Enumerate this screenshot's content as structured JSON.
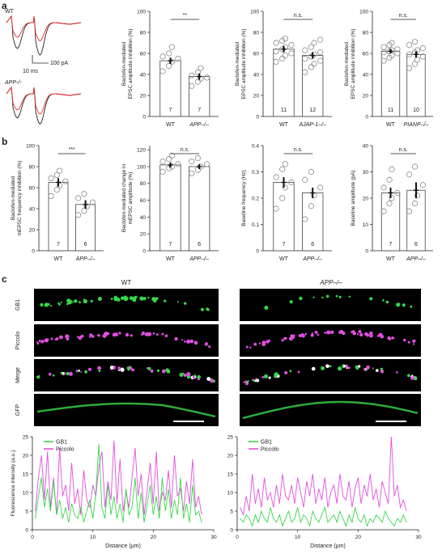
{
  "panels": {
    "a": "a",
    "b": "b",
    "c": "c"
  },
  "traces": {
    "wt_label": "WT",
    "app_label": "APP-/-",
    "scale_current": "100 pA",
    "scale_time": "10 ms",
    "colors": {
      "control": "#222222",
      "baclofen": "#e8282b"
    }
  },
  "colors": {
    "bar_fill": "#ffffff",
    "bar_stroke": "#444444",
    "point_stroke": "#8a8a8a",
    "gb1": "#39d64a",
    "piccolo": "#e24ee0",
    "image_bg": "#000000"
  },
  "chart_data": [
    {
      "id": "a1",
      "type": "bar",
      "ylabel": "Baclofen-mediated EPSC amplitude inhibition (%)",
      "categories": [
        "WT",
        "APP–/–"
      ],
      "italic": [
        false,
        true
      ],
      "values": [
        53,
        38
      ],
      "sem": [
        3,
        3
      ],
      "n": [
        "7",
        "7"
      ],
      "ylim": [
        0,
        100
      ],
      "yticks": [
        0,
        20,
        40,
        60,
        80,
        100
      ],
      "significance": "**",
      "points": [
        [
          43,
          48,
          52,
          55,
          57,
          60,
          66
        ],
        [
          29,
          33,
          36,
          37,
          39,
          42,
          46
        ]
      ]
    },
    {
      "id": "a2",
      "type": "bar",
      "ylabel": "Baclofen-mediated EPSC amplitude inhibition (%)",
      "categories": [
        "WT",
        "AJAP-1–/–"
      ],
      "italic": [
        false,
        true
      ],
      "values": [
        64,
        58
      ],
      "sem": [
        3,
        3
      ],
      "n": [
        "11",
        "12"
      ],
      "ylim": [
        0,
        100
      ],
      "yticks": [
        0,
        20,
        40,
        60,
        80,
        100
      ],
      "significance": "n.s.",
      "points": [
        [
          52,
          55,
          58,
          60,
          62,
          64,
          66,
          68,
          70,
          72,
          74
        ],
        [
          42,
          47,
          50,
          53,
          55,
          57,
          59,
          61,
          63,
          66,
          70,
          73
        ]
      ]
    },
    {
      "id": "a3",
      "type": "bar",
      "ylabel": "Baclofen-mediated EPSC amplitude inhibition (%)",
      "categories": [
        "WT",
        "PIANP–/–"
      ],
      "italic": [
        false,
        true
      ],
      "values": [
        62,
        59
      ],
      "sem": [
        2,
        3
      ],
      "n": [
        "11",
        "10"
      ],
      "ylim": [
        0,
        100
      ],
      "yticks": [
        0,
        20,
        40,
        60,
        80,
        100
      ],
      "significance": "n.s.",
      "points": [
        [
          53,
          56,
          58,
          60,
          61,
          62,
          63,
          64,
          66,
          68,
          70
        ],
        [
          46,
          50,
          54,
          57,
          59,
          61,
          63,
          65,
          68,
          71
        ]
      ]
    },
    {
      "id": "b1",
      "type": "bar",
      "ylabel": "Baclofen-mediated mEPSC frequency inhibition (%)",
      "categories": [
        "WT",
        "APP–/–"
      ],
      "italic": [
        false,
        true
      ],
      "values": [
        65,
        44
      ],
      "sem": [
        4,
        4
      ],
      "n": [
        "7",
        "6"
      ],
      "ylim": [
        0,
        100
      ],
      "yticks": [
        0,
        20,
        40,
        60,
        80,
        100
      ],
      "significance": "***",
      "points": [
        [
          52,
          58,
          62,
          66,
          69,
          72,
          76
        ],
        [
          34,
          38,
          42,
          46,
          50,
          54
        ]
      ]
    },
    {
      "id": "b2",
      "type": "bar",
      "ylabel": "Baclofen-mediated change in mEPSC amplitude (%)",
      "categories": [
        "WT",
        "APP–/–"
      ],
      "italic": [
        false,
        true
      ],
      "values": [
        102,
        100
      ],
      "sem": [
        3,
        3
      ],
      "n": [
        "7",
        "6"
      ],
      "ylim": [
        0,
        125
      ],
      "yticks": [
        0,
        20,
        40,
        60,
        80,
        100,
        120
      ],
      "significance": "n.s.",
      "points": [
        [
          94,
          98,
          100,
          103,
          106,
          109,
          113
        ],
        [
          92,
          96,
          100,
          103,
          106,
          110
        ]
      ]
    },
    {
      "id": "b3",
      "type": "bar",
      "ylabel": "Baseline frequency (Hz)",
      "categories": [
        "WT",
        "APP–/–"
      ],
      "italic": [
        false,
        true
      ],
      "values": [
        0.26,
        0.22
      ],
      "sem": [
        0.02,
        0.02
      ],
      "n": [
        "7",
        "6"
      ],
      "ylim": [
        0,
        0.4
      ],
      "yticks": [
        0,
        0.1,
        0.2,
        0.3,
        0.4
      ],
      "significance": "n.s.",
      "points": [
        [
          0.16,
          0.2,
          0.24,
          0.26,
          0.28,
          0.31,
          0.33
        ],
        [
          0.12,
          0.17,
          0.21,
          0.24,
          0.27,
          0.3
        ]
      ]
    },
    {
      "id": "b4",
      "type": "bar",
      "ylabel": "Baseline amplitude (pA)",
      "categories": [
        "WT",
        "APP–/–"
      ],
      "italic": [
        false,
        true
      ],
      "values": [
        22,
        23
      ],
      "sem": [
        2,
        3
      ],
      "n": [
        "7",
        "6"
      ],
      "ylim": [
        0,
        40
      ],
      "yticks": [
        0,
        10,
        20,
        30,
        40
      ],
      "significance": "n.s.",
      "points": [
        [
          15,
          18,
          20,
          22,
          24,
          27,
          31
        ],
        [
          15,
          18,
          21,
          25,
          29,
          32
        ]
      ]
    },
    {
      "id": "c_wt",
      "type": "line",
      "xlabel": "Distance (µm)",
      "ylabel": "Fluorescence intensity (a.u.)",
      "xlim": [
        0,
        30
      ],
      "ylim": [
        0,
        25
      ],
      "xticks": [
        0,
        10,
        20,
        30
      ],
      "yticks": [
        0,
        5,
        10,
        15,
        20,
        25
      ],
      "legend": "top-left",
      "series": [
        {
          "name": "GB1",
          "color": "#39d64a",
          "x": [
            0.5,
            1.0,
            1.5,
            2.0,
            2.5,
            3.0,
            3.5,
            4.0,
            4.5,
            5.0,
            5.5,
            6.0,
            6.5,
            7.0,
            7.5,
            8.0,
            8.5,
            9.0,
            9.5,
            10.0,
            10.5,
            11.0,
            11.5,
            12.0,
            12.5,
            13.0,
            13.5,
            14.0,
            14.5,
            15.0,
            15.5,
            16.0,
            16.5,
            17.0,
            17.5,
            18.0,
            18.5,
            19.0,
            19.5,
            20.0,
            20.5,
            21.0,
            21.5,
            22.0,
            22.5,
            23.0,
            23.5,
            24.0,
            24.5,
            25.0,
            25.5,
            26.0,
            26.5,
            27.0,
            27.5,
            28.0
          ],
          "y": [
            3,
            9,
            14,
            6,
            11,
            5,
            13,
            4,
            8,
            3,
            6,
            2,
            7,
            4,
            3,
            6,
            2,
            5,
            8,
            3,
            10,
            23,
            6,
            3,
            12,
            4,
            9,
            3,
            7,
            2,
            11,
            4,
            6,
            14,
            3,
            10,
            2,
            7,
            12,
            4,
            9,
            3,
            14,
            5,
            11,
            3,
            8,
            4,
            14,
            3,
            7,
            2,
            12,
            4,
            5,
            2
          ]
        },
        {
          "name": "Piccolo",
          "color": "#e24ee0",
          "x": [
            0.5,
            1.0,
            1.5,
            2.0,
            2.5,
            3.0,
            3.5,
            4.0,
            4.5,
            5.0,
            5.5,
            6.0,
            6.5,
            7.0,
            7.5,
            8.0,
            8.5,
            9.0,
            9.5,
            10.0,
            10.5,
            11.0,
            11.5,
            12.0,
            12.5,
            13.0,
            13.5,
            14.0,
            14.5,
            15.0,
            15.5,
            16.0,
            16.5,
            17.0,
            17.5,
            18.0,
            18.5,
            19.0,
            19.5,
            20.0,
            20.5,
            21.0,
            21.5,
            22.0,
            22.5,
            23.0,
            23.5,
            24.0,
            24.5,
            25.0,
            25.5,
            26.0,
            26.5,
            27.0,
            27.5,
            28.0
          ],
          "y": [
            5,
            14,
            20,
            8,
            21,
            6,
            14,
            4,
            22,
            9,
            12,
            5,
            18,
            7,
            11,
            4,
            16,
            8,
            6,
            12,
            9,
            17,
            21,
            6,
            13,
            8,
            24,
            7,
            19,
            5,
            10,
            6,
            14,
            22,
            9,
            15,
            4,
            11,
            18,
            7,
            21,
            5,
            10,
            8,
            16,
            6,
            20,
            9,
            11,
            5,
            13,
            7,
            19,
            6,
            9,
            4
          ]
        }
      ]
    },
    {
      "id": "c_app",
      "type": "line",
      "xlabel": "Distance (µm)",
      "ylabel": "",
      "xlim": [
        0,
        30
      ],
      "ylim": [
        0,
        25
      ],
      "xticks": [
        0,
        10,
        20,
        30
      ],
      "yticks": [
        0,
        5,
        10,
        15,
        20,
        25
      ],
      "legend": "top-left",
      "series": [
        {
          "name": "GB1",
          "color": "#39d64a",
          "x": [
            0.5,
            1.0,
            1.5,
            2.0,
            2.5,
            3.0,
            3.5,
            4.0,
            4.5,
            5.0,
            5.5,
            6.0,
            6.5,
            7.0,
            7.5,
            8.0,
            8.5,
            9.0,
            9.5,
            10.0,
            10.5,
            11.0,
            11.5,
            12.0,
            12.5,
            13.0,
            13.5,
            14.0,
            14.5,
            15.0,
            15.5,
            16.0,
            16.5,
            17.0,
            17.5,
            18.0,
            18.5,
            19.0,
            19.5,
            20.0,
            20.5,
            21.0,
            21.5,
            22.0,
            22.5,
            23.0,
            23.5,
            24.0,
            24.5,
            25.0,
            25.5,
            26.0,
            26.5,
            27.0,
            27.5,
            28.0
          ],
          "y": [
            3,
            2,
            4,
            3,
            1,
            4,
            2,
            5,
            3,
            2,
            6,
            3,
            2,
            4,
            1,
            3,
            5,
            2,
            3,
            6,
            2,
            4,
            3,
            1,
            5,
            3,
            2,
            4,
            6,
            2,
            3,
            4,
            2,
            5,
            3,
            1,
            4,
            2,
            6,
            3,
            2,
            4,
            1,
            3,
            2,
            4,
            3,
            2,
            5,
            3,
            2,
            1,
            3,
            2,
            4,
            2
          ]
        },
        {
          "name": "Piccolo",
          "color": "#e24ee0",
          "x": [
            0.5,
            1.0,
            1.5,
            2.0,
            2.5,
            3.0,
            3.5,
            4.0,
            4.5,
            5.0,
            5.5,
            6.0,
            6.5,
            7.0,
            7.5,
            8.0,
            8.5,
            9.0,
            9.5,
            10.0,
            10.5,
            11.0,
            11.5,
            12.0,
            12.5,
            13.0,
            13.5,
            14.0,
            14.5,
            15.0,
            15.5,
            16.0,
            16.5,
            17.0,
            17.5,
            18.0,
            18.5,
            19.0,
            19.5,
            20.0,
            20.5,
            21.0,
            21.5,
            22.0,
            22.5,
            23.0,
            23.5,
            24.0,
            24.5,
            25.0,
            25.5,
            26.0,
            26.5,
            27.0,
            27.5,
            28.0
          ],
          "y": [
            6,
            4,
            9,
            5,
            15,
            7,
            11,
            6,
            14,
            8,
            10,
            6,
            12,
            7,
            15,
            9,
            8,
            12,
            7,
            14,
            10,
            6,
            13,
            9,
            15,
            7,
            11,
            8,
            14,
            6,
            10,
            12,
            7,
            15,
            9,
            8,
            13,
            6,
            11,
            14,
            7,
            12,
            9,
            15,
            8,
            11,
            6,
            13,
            10,
            7,
            25,
            9,
            12,
            6,
            8,
            5
          ]
        }
      ]
    }
  ],
  "micrographs": {
    "col_labels": [
      "WT",
      "APP–/–"
    ],
    "row_labels": [
      "GB1",
      "Piccolo",
      "Merge",
      "GFP"
    ]
  }
}
